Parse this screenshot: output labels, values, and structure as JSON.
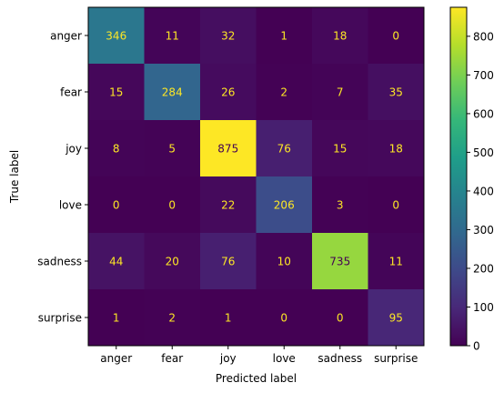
{
  "chart_data": {
    "type": "heatmap",
    "title": "",
    "xlabel": "Predicted label",
    "ylabel": "True label",
    "x_categories": [
      "anger",
      "fear",
      "joy",
      "love",
      "sadness",
      "surprise"
    ],
    "y_categories": [
      "anger",
      "fear",
      "joy",
      "love",
      "sadness",
      "surprise"
    ],
    "values": [
      [
        346,
        11,
        32,
        1,
        18,
        0
      ],
      [
        15,
        284,
        26,
        2,
        7,
        35
      ],
      [
        8,
        5,
        875,
        76,
        15,
        18
      ],
      [
        0,
        0,
        22,
        206,
        3,
        0
      ],
      [
        44,
        20,
        76,
        10,
        735,
        11
      ],
      [
        1,
        2,
        1,
        0,
        0,
        95
      ]
    ],
    "colormap": "viridis",
    "value_range": [
      0,
      875
    ],
    "colorbar_ticks": [
      0,
      100,
      200,
      300,
      400,
      500,
      600,
      700,
      800
    ],
    "annotation_colors": {
      "on_dark": "#fde725",
      "on_light": "#440154"
    },
    "grid": false
  }
}
